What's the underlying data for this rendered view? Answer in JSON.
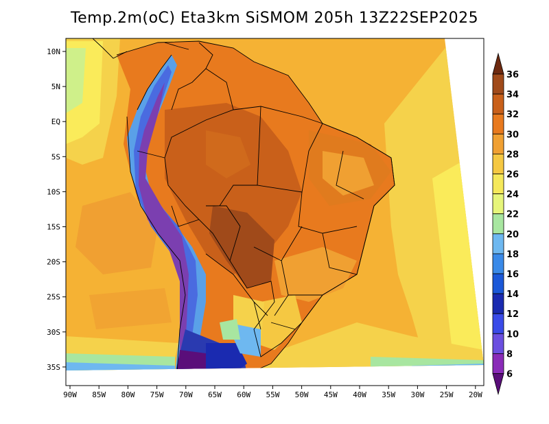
{
  "title": "Temp.2m(oC) Eta3km SiSMOM 205h 13Z22SEP2025",
  "colors": {
    "ocean_warm": "#F5B234",
    "ocean_mid": "#F5D24B",
    "ocean_cool": "#FAEB5A",
    "land_hot": "#E07B1E",
    "land_hotter": "#C9601A",
    "land_hottest": "#A24A1A",
    "andes_cold": "#7B3FB0",
    "andes_cool": "#4A6BE0",
    "south_cold": "#2A3AB0",
    "coast_cool": "#5AA0E8",
    "coast_light": "#9FD6F0",
    "outline": "#000000"
  },
  "map": {
    "lon_ticks": [
      "90W",
      "85W",
      "80W",
      "75W",
      "70W",
      "65W",
      "60W",
      "55W",
      "50W",
      "45W",
      "40W",
      "35W",
      "30W",
      "25W",
      "20W"
    ],
    "lat_ticks": [
      "10N",
      "5N",
      "EQ",
      "5S",
      "10S",
      "15S",
      "20S",
      "25S",
      "30S",
      "35S"
    ]
  },
  "colorbar": {
    "labels": [
      "6",
      "8",
      "10",
      "12",
      "14",
      "16",
      "18",
      "20",
      "22",
      "24",
      "26",
      "28",
      "30",
      "32",
      "34",
      "36"
    ],
    "colors": [
      "#5A0E7A",
      "#8A2BB8",
      "#6B4FE0",
      "#3A4BE8",
      "#1A2AB0",
      "#1B58D8",
      "#3A8AE8",
      "#6EB8F0",
      "#A8E6A0",
      "#E6F57A",
      "#F5E85A",
      "#F5C842",
      "#F0A032",
      "#E87A1E",
      "#C9601A",
      "#A04A1A",
      "#6E2A10"
    ]
  }
}
